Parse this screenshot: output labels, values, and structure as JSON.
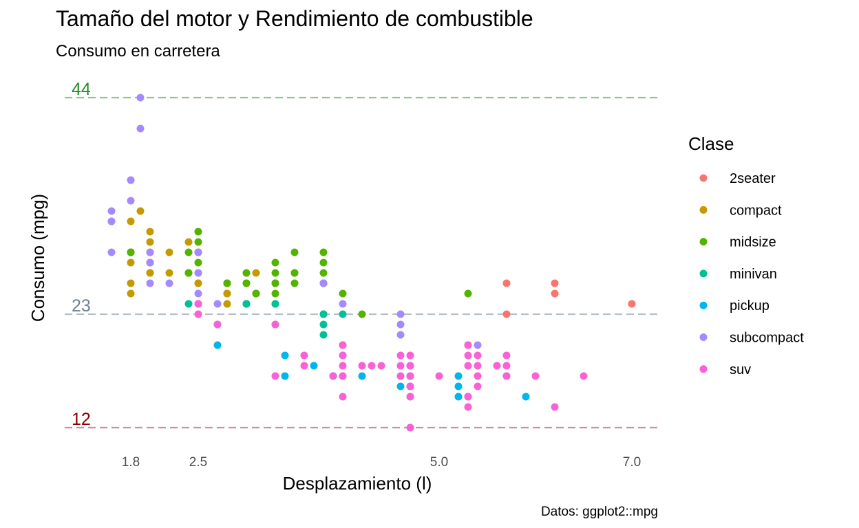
{
  "chart_data": {
    "type": "scatter",
    "title": "Tamaño del motor y Rendimiento de combustible",
    "subtitle": "Consumo en carretera",
    "xlabel": "Desplazamiento (l)",
    "ylabel": "Consumo (mpg)",
    "caption": "Datos: ggplot2::mpg",
    "x_ticks": [
      "1.8",
      "2.5",
      "5.0",
      "7.0"
    ],
    "xlim": [
      1.6,
      7.0
    ],
    "ylim": [
      12,
      44
    ],
    "grid": false,
    "legend": {
      "title": "Clase",
      "position": "right",
      "entries": [
        {
          "name": "2seater",
          "color": "#F8766D"
        },
        {
          "name": "compact",
          "color": "#C49A00"
        },
        {
          "name": "midsize",
          "color": "#53B400"
        },
        {
          "name": "minivan",
          "color": "#00C094"
        },
        {
          "name": "pickup",
          "color": "#00B6EB"
        },
        {
          "name": "subcompact",
          "color": "#A58AFF"
        },
        {
          "name": "suv",
          "color": "#FB61D7"
        }
      ]
    },
    "reference_lines": [
      {
        "label": "44",
        "value": 44,
        "color": "#228B22",
        "line_color": "#8FC58F"
      },
      {
        "label": "23",
        "value": 23,
        "color": "#708090",
        "line_color": "#B5BFC7"
      },
      {
        "label": "12",
        "value": 12,
        "color": "#8B0000",
        "line_color": "#D98A95"
      }
    ],
    "series": [
      {
        "name": "2seater",
        "color": "#F8766D",
        "points": [
          [
            5.7,
            26
          ],
          [
            5.7,
            23
          ],
          [
            6.2,
            26
          ],
          [
            6.2,
            25
          ],
          [
            7.0,
            24
          ]
        ]
      },
      {
        "name": "compact",
        "color": "#C49A00",
        "points": [
          [
            1.8,
            29
          ],
          [
            1.8,
            29
          ],
          [
            2.0,
            31
          ],
          [
            2.0,
            30
          ],
          [
            2.8,
            26
          ],
          [
            2.8,
            26
          ],
          [
            3.1,
            27
          ],
          [
            1.8,
            26
          ],
          [
            1.8,
            25
          ],
          [
            2.0,
            28
          ],
          [
            2.0,
            27
          ],
          [
            2.8,
            25
          ],
          [
            2.8,
            25
          ],
          [
            3.1,
            25
          ],
          [
            3.1,
            25
          ],
          [
            1.9,
            33
          ],
          [
            2.0,
            27
          ],
          [
            2.2,
            29
          ],
          [
            2.2,
            27
          ],
          [
            2.4,
            27
          ],
          [
            2.4,
            30
          ],
          [
            2.5,
            26
          ],
          [
            2.5,
            29
          ],
          [
            2.5,
            26
          ],
          [
            2.5,
            29
          ],
          [
            1.8,
            32
          ],
          [
            1.8,
            28
          ],
          [
            1.8,
            29
          ],
          [
            2.8,
            24
          ],
          [
            3.0,
            24
          ]
        ]
      },
      {
        "name": "midsize",
        "color": "#53B400",
        "points": [
          [
            2.4,
            27
          ],
          [
            3.3,
            26
          ],
          [
            3.3,
            26
          ],
          [
            3.3,
            25
          ],
          [
            3.5,
            27
          ],
          [
            3.5,
            26
          ],
          [
            3.3,
            26
          ],
          [
            3.5,
            29
          ],
          [
            3.8,
            26
          ],
          [
            3.8,
            27
          ],
          [
            4.0,
            25
          ],
          [
            4.2,
            23
          ],
          [
            1.8,
            29
          ],
          [
            2.0,
            28
          ],
          [
            2.0,
            29
          ],
          [
            2.4,
            29
          ],
          [
            2.4,
            27
          ],
          [
            2.5,
            30
          ],
          [
            2.5,
            31
          ],
          [
            2.5,
            28
          ],
          [
            2.5,
            29
          ],
          [
            2.8,
            26
          ],
          [
            2.8,
            26
          ],
          [
            3.0,
            26
          ],
          [
            3.0,
            26
          ],
          [
            3.1,
            25
          ],
          [
            3.1,
            25
          ],
          [
            3.3,
            28
          ],
          [
            3.5,
            27
          ],
          [
            3.8,
            29
          ],
          [
            3.8,
            28
          ],
          [
            3.8,
            26
          ],
          [
            3.0,
            27
          ],
          [
            3.3,
            27
          ],
          [
            5.3,
            25
          ]
        ]
      },
      {
        "name": "minivan",
        "color": "#00C094",
        "points": [
          [
            2.4,
            24
          ],
          [
            3.0,
            24
          ],
          [
            3.3,
            22
          ],
          [
            3.3,
            24
          ],
          [
            3.3,
            24
          ],
          [
            3.8,
            22
          ],
          [
            3.8,
            21
          ],
          [
            3.8,
            23
          ],
          [
            3.8,
            23
          ],
          [
            4.0,
            23
          ],
          [
            3.0,
            24
          ]
        ]
      },
      {
        "name": "pickup",
        "color": "#00B6EB",
        "points": [
          [
            2.7,
            20
          ],
          [
            2.7,
            22
          ],
          [
            3.4,
            17
          ],
          [
            3.4,
            19
          ],
          [
            3.7,
            18
          ],
          [
            3.9,
            17
          ],
          [
            3.9,
            17
          ],
          [
            4.0,
            20
          ],
          [
            4.2,
            17
          ],
          [
            4.7,
            17
          ],
          [
            4.7,
            16
          ],
          [
            4.7,
            15
          ],
          [
            4.7,
            17
          ],
          [
            4.7,
            16
          ],
          [
            5.2,
            15
          ],
          [
            5.2,
            16
          ],
          [
            5.7,
            17
          ],
          [
            5.9,
            15
          ],
          [
            4.7,
            12
          ],
          [
            5.2,
            17
          ],
          [
            5.3,
            15
          ],
          [
            4.0,
            19
          ],
          [
            4.0,
            20
          ],
          [
            4.6,
            17
          ],
          [
            4.6,
            16
          ]
        ]
      },
      {
        "name": "subcompact",
        "color": "#A58AFF",
        "points": [
          [
            1.6,
            33
          ],
          [
            1.6,
            32
          ],
          [
            1.6,
            29
          ],
          [
            1.6,
            32
          ],
          [
            1.6,
            32
          ],
          [
            1.8,
            34
          ],
          [
            1.8,
            36
          ],
          [
            1.8,
            36
          ],
          [
            1.9,
            44
          ],
          [
            1.9,
            41
          ],
          [
            2.0,
            29
          ],
          [
            2.0,
            26
          ],
          [
            2.5,
            24
          ],
          [
            2.5,
            27
          ],
          [
            2.5,
            29
          ],
          [
            2.5,
            27
          ],
          [
            2.5,
            25
          ],
          [
            2.7,
            24
          ],
          [
            3.8,
            26
          ],
          [
            3.8,
            26
          ],
          [
            4.0,
            24
          ],
          [
            4.6,
            21
          ],
          [
            4.6,
            22
          ],
          [
            4.6,
            23
          ],
          [
            5.4,
            20
          ],
          [
            2.0,
            28
          ],
          [
            2.0,
            28
          ],
          [
            2.2,
            26
          ]
        ]
      },
      {
        "name": "suv",
        "color": "#FB61D7",
        "points": [
          [
            5.3,
            20
          ],
          [
            5.3,
            15
          ],
          [
            5.3,
            20
          ],
          [
            5.7,
            17
          ],
          [
            6.0,
            17
          ],
          [
            5.7,
            19
          ],
          [
            5.7,
            18
          ],
          [
            6.2,
            14
          ],
          [
            6.5,
            17
          ],
          [
            2.5,
            24
          ],
          [
            2.5,
            23
          ],
          [
            3.3,
            22
          ],
          [
            3.6,
            19
          ],
          [
            4.0,
            18
          ],
          [
            4.0,
            19
          ],
          [
            4.0,
            17
          ],
          [
            4.0,
            20
          ],
          [
            4.3,
            18
          ],
          [
            4.6,
            17
          ],
          [
            4.6,
            19
          ],
          [
            4.7,
            18
          ],
          [
            4.7,
            19
          ],
          [
            4.7,
            17
          ],
          [
            4.7,
            15
          ],
          [
            4.7,
            12
          ],
          [
            5.0,
            17
          ],
          [
            5.4,
            18
          ],
          [
            5.4,
            17
          ],
          [
            5.4,
            19
          ],
          [
            5.4,
            16
          ],
          [
            5.6,
            18
          ],
          [
            3.9,
            17
          ],
          [
            4.2,
            18
          ],
          [
            4.4,
            18
          ],
          [
            4.6,
            18
          ],
          [
            4.7,
            18
          ],
          [
            5.3,
            14
          ],
          [
            5.3,
            19
          ],
          [
            5.3,
            20
          ],
          [
            5.3,
            18
          ],
          [
            2.7,
            22
          ],
          [
            3.3,
            17
          ],
          [
            3.6,
            18
          ],
          [
            4.7,
            16
          ],
          [
            4.0,
            15
          ],
          [
            4.0,
            17
          ]
        ]
      }
    ]
  }
}
